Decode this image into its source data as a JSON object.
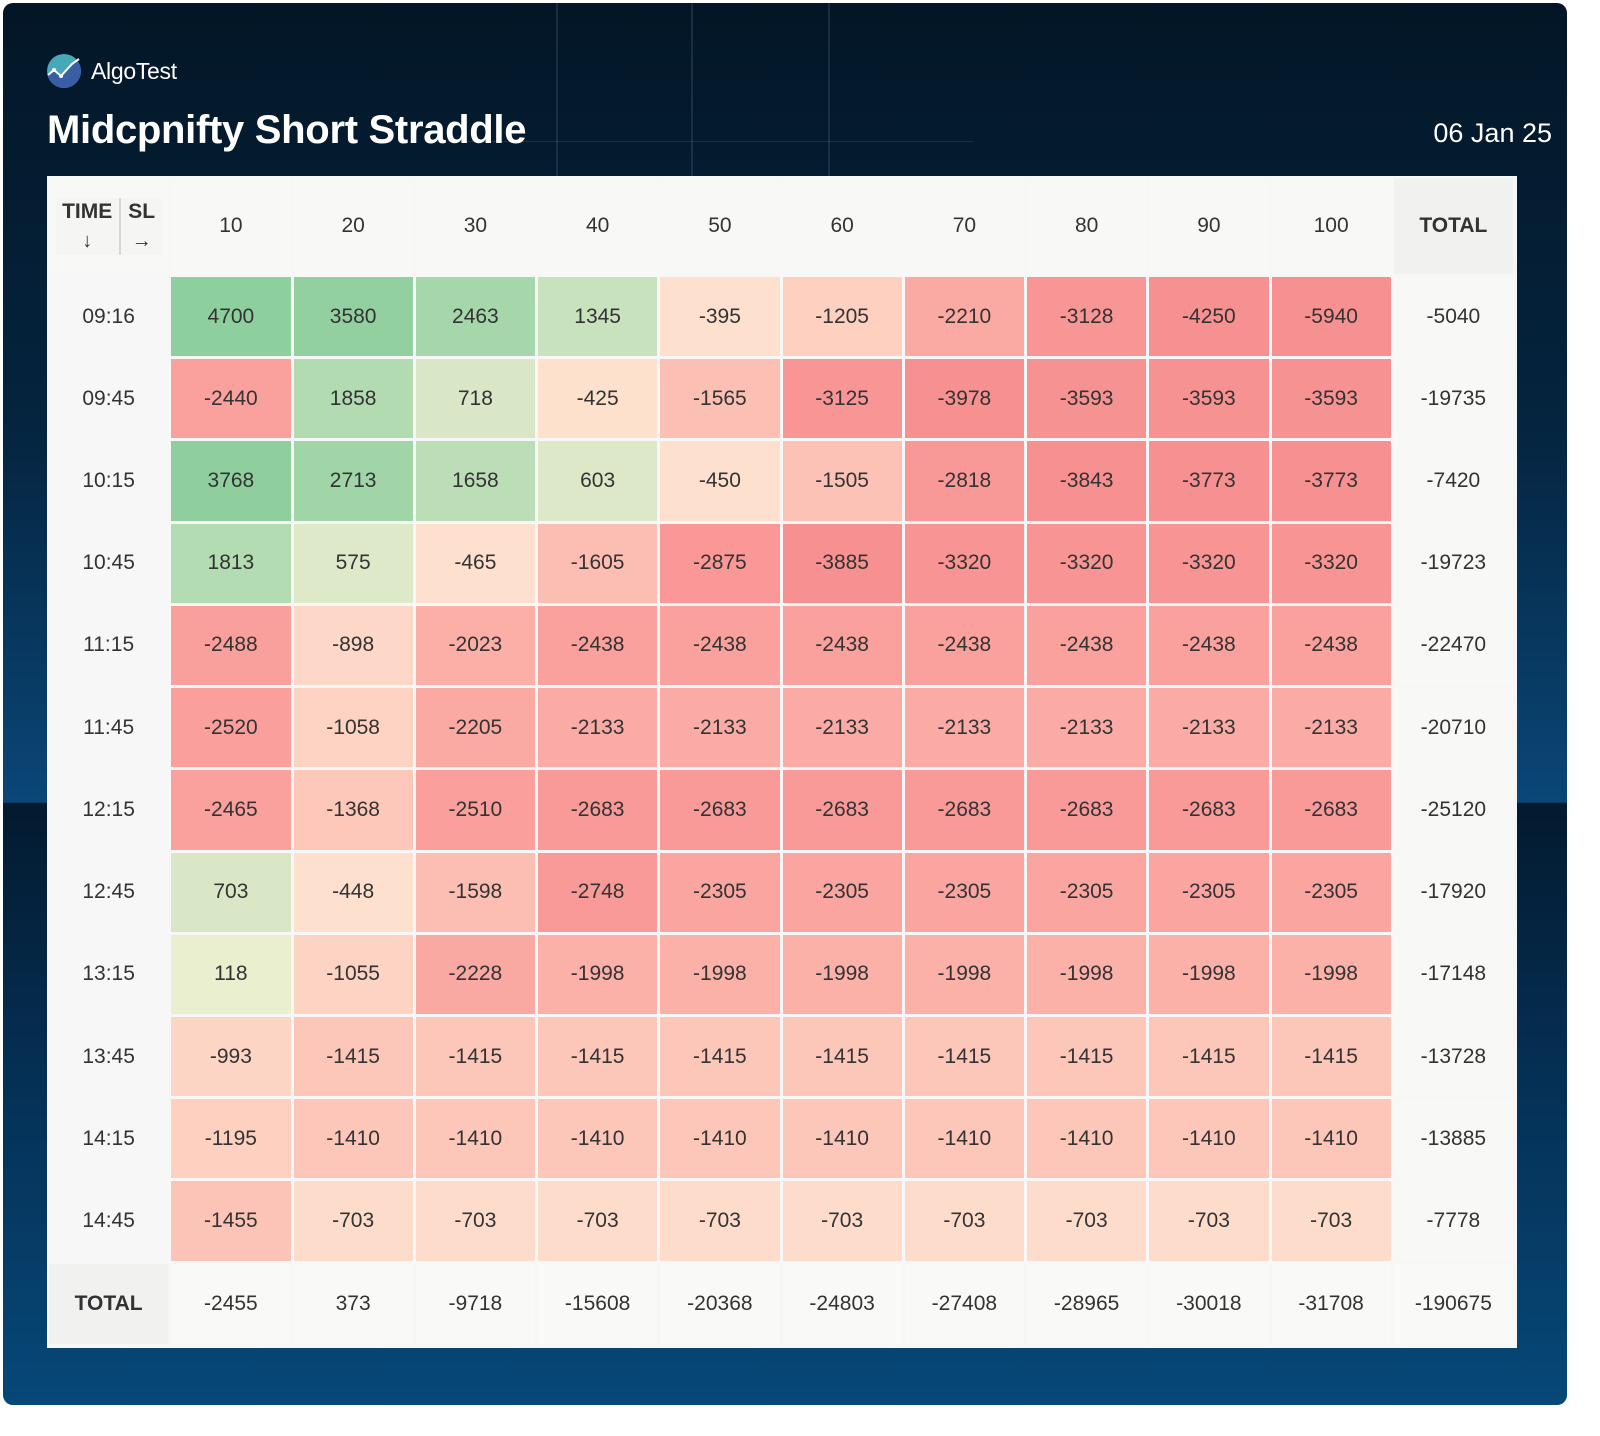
{
  "brand": {
    "name": "AlgoTest",
    "logo_icon": "algotest-logo-icon"
  },
  "title": "Midcpnifty Short Straddle",
  "date": "06 Jan 25",
  "colors": {
    "positive_strong": "#8ecf9e",
    "positive_light": "#e9efd0",
    "neutral": "#fde1cc",
    "negative_strong": "#f79090"
  },
  "chart_data": {
    "type": "heatmap",
    "title": "Midcpnifty Short Straddle",
    "corner_labels": {
      "row_axis": "TIME",
      "row_arrow": "↓",
      "col_axis": "SL",
      "col_arrow": "→"
    },
    "xlabel": "SL",
    "ylabel": "TIME",
    "x": [
      "10",
      "20",
      "30",
      "40",
      "50",
      "60",
      "70",
      "80",
      "90",
      "100"
    ],
    "y": [
      "09:16",
      "09:45",
      "10:15",
      "10:45",
      "11:15",
      "11:45",
      "12:15",
      "12:45",
      "13:15",
      "13:45",
      "14:15",
      "14:45"
    ],
    "total_label": "TOTAL",
    "values": [
      [
        4700,
        3580,
        2463,
        1345,
        -395,
        -1205,
        -2210,
        -3128,
        -4250,
        -5940
      ],
      [
        -2440,
        1858,
        718,
        -425,
        -1565,
        -3125,
        -3978,
        -3593,
        -3593,
        -3593
      ],
      [
        3768,
        2713,
        1658,
        603,
        -450,
        -1505,
        -2818,
        -3843,
        -3773,
        -3773
      ],
      [
        1813,
        575,
        -465,
        -1605,
        -2875,
        -3885,
        -3320,
        -3320,
        -3320,
        -3320
      ],
      [
        -2488,
        -898,
        -2023,
        -2438,
        -2438,
        -2438,
        -2438,
        -2438,
        -2438,
        -2438
      ],
      [
        -2520,
        -1058,
        -2205,
        -2133,
        -2133,
        -2133,
        -2133,
        -2133,
        -2133,
        -2133
      ],
      [
        -2465,
        -1368,
        -2510,
        -2683,
        -2683,
        -2683,
        -2683,
        -2683,
        -2683,
        -2683
      ],
      [
        703,
        -448,
        -1598,
        -2748,
        -2305,
        -2305,
        -2305,
        -2305,
        -2305,
        -2305
      ],
      [
        118,
        -1055,
        -2228,
        -1998,
        -1998,
        -1998,
        -1998,
        -1998,
        -1998,
        -1998
      ],
      [
        -993,
        -1415,
        -1415,
        -1415,
        -1415,
        -1415,
        -1415,
        -1415,
        -1415,
        -1415
      ],
      [
        -1195,
        -1410,
        -1410,
        -1410,
        -1410,
        -1410,
        -1410,
        -1410,
        -1410,
        -1410
      ],
      [
        -1455,
        -703,
        -703,
        -703,
        -703,
        -703,
        -703,
        -703,
        -703,
        -703
      ]
    ],
    "row_totals": [
      -5040,
      -19735,
      -7420,
      -19723,
      -22470,
      -20710,
      -25120,
      -17920,
      -17148,
      -13728,
      -13885,
      -7778
    ],
    "col_totals": [
      -2455,
      373,
      -9718,
      -15608,
      -20368,
      -24803,
      -27408,
      -28965,
      -30018,
      -31708
    ],
    "grand_total": -190675
  }
}
